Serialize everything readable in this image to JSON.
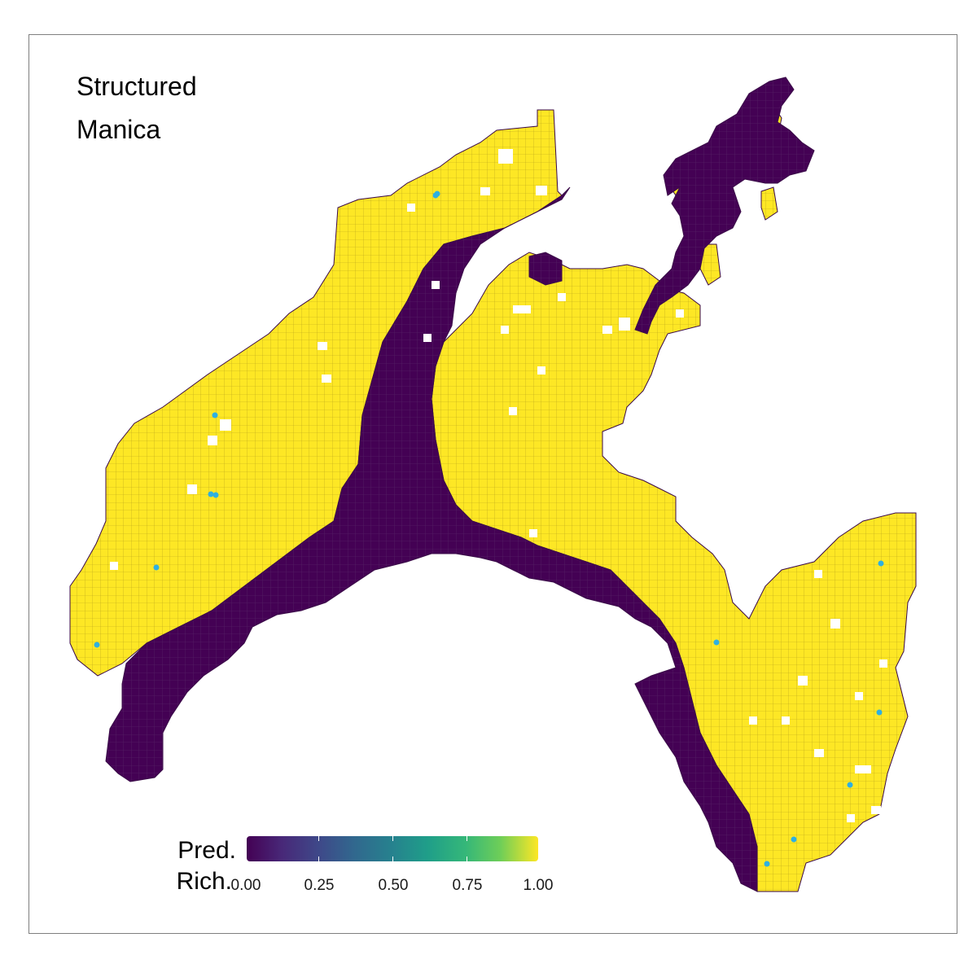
{
  "title": [
    "Structured",
    "Manica"
  ],
  "legend": {
    "title_line1": "Pred.",
    "title_line2": "Rich.",
    "ticks": [
      "0.00",
      "0.25",
      "0.50",
      "0.75",
      "1.00"
    ],
    "colors": [
      "#440154",
      "#fde725"
    ],
    "scale": "viridis"
  },
  "colors": {
    "low": "#440154",
    "high": "#fde725",
    "points": "#2fb0e0",
    "cell_border": "#b9a21a"
  },
  "region": "Manica",
  "layer": "Predicted species richness (structured model)",
  "observation_points_count": 13
}
